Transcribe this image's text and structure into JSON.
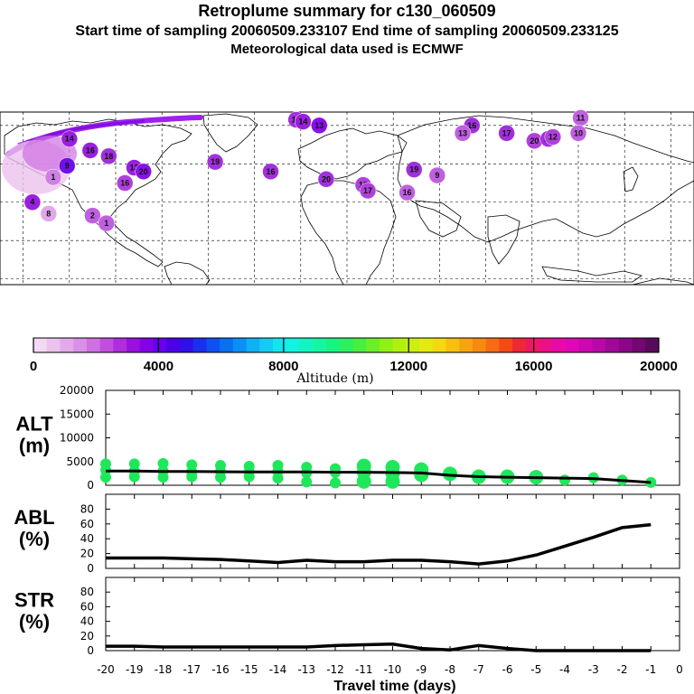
{
  "header": {
    "title": "Retroplume summary for c130_060509",
    "sampling": "Start time of sampling 20060509.233107     End time of sampling 20060509.233125",
    "met": "Meteorological data used is ECMWF"
  },
  "colorbar": {
    "ticks": [
      "0",
      "4000",
      "8000",
      "12000",
      "16000",
      "20000"
    ],
    "label": "Altitude (m)",
    "colors": [
      "#f4d9f4",
      "#ecc2ee",
      "#e3aaea",
      "#da90e6",
      "#cf70e2",
      "#c24ee0",
      "#b02cdc",
      "#9a10de",
      "#8400e6",
      "#6800ec",
      "#4c00e8",
      "#3010e8",
      "#1a30ee",
      "#1050f0",
      "#0a70f2",
      "#0a90f4",
      "#10b0f4",
      "#14ccf2",
      "#14e4ee",
      "#14f2e0",
      "#14f4c0",
      "#14f6a0",
      "#18f480",
      "#2cf060",
      "#48ee40",
      "#6cee28",
      "#90f018",
      "#b0f010",
      "#ccee10",
      "#e4ea10",
      "#f4d810",
      "#f8be10",
      "#f8a410",
      "#f88a10",
      "#f66c14",
      "#f44a18",
      "#ee2834",
      "#ee1860",
      "#ec1088",
      "#e80aa8",
      "#de08b8",
      "#cc08b0",
      "#b808a8",
      "#a00898",
      "#8a0888",
      "#720870",
      "#5a0a5c"
    ]
  },
  "map_markers": [
    {
      "label": "18",
      "lon": -22,
      "lat": 83,
      "c": "#a030dc"
    },
    {
      "label": "14",
      "lon": -19,
      "lat": 82,
      "c": "#9a20e0"
    },
    {
      "label": "13",
      "lon": -12,
      "lat": 80,
      "c": "#8a10e8"
    },
    {
      "label": "16",
      "lon": 54,
      "lat": 80,
      "c": "#a030dc"
    },
    {
      "label": "13",
      "lon": 50,
      "lat": 76,
      "c": "#c060e0"
    },
    {
      "label": "17",
      "lon": 69,
      "lat": 76,
      "c": "#a030dc"
    },
    {
      "label": "20",
      "lon": 81,
      "lat": 72,
      "c": "#b040dc"
    },
    {
      "label": "19",
      "lon": 87,
      "lat": 73,
      "c": "#a030dc"
    },
    {
      "label": "12",
      "lon": 89,
      "lat": 74,
      "c": "#b040dc"
    },
    {
      "label": "11",
      "lon": 101,
      "lat": 84,
      "c": "#c060e0"
    },
    {
      "label": "10",
      "lon": 100,
      "lat": 76,
      "c": "#c060e0"
    },
    {
      "label": "16",
      "lon": -111,
      "lat": 67,
      "c": "#9a20e0"
    },
    {
      "label": "18",
      "lon": -103,
      "lat": 64,
      "c": "#a030dc"
    },
    {
      "label": "13",
      "lon": -92,
      "lat": 58,
      "c": "#9a20e0"
    },
    {
      "label": "16",
      "lon": -96,
      "lat": 50,
      "c": "#b040dc"
    },
    {
      "label": "20",
      "lon": -88,
      "lat": 56,
      "c": "#8a10e8"
    },
    {
      "label": "19",
      "lon": -57,
      "lat": 61,
      "c": "#a030dc"
    },
    {
      "label": "16",
      "lon": -33,
      "lat": 56,
      "c": "#a030dc"
    },
    {
      "label": "20",
      "lon": -9,
      "lat": 52,
      "c": "#a030dc"
    },
    {
      "label": "18",
      "lon": 7,
      "lat": 49,
      "c": "#b040dc"
    },
    {
      "label": "17",
      "lon": 9,
      "lat": 46,
      "c": "#b040dc"
    },
    {
      "label": "19",
      "lon": 29,
      "lat": 57,
      "c": "#a030dc"
    },
    {
      "label": "16",
      "lon": 26,
      "lat": 45,
      "c": "#c060e0"
    },
    {
      "label": "9",
      "lon": 39,
      "lat": 54,
      "c": "#c060e0"
    },
    {
      "label": "4",
      "lon": -136,
      "lat": 40,
      "c": "#9a20e0"
    },
    {
      "label": "8",
      "lon": -129,
      "lat": 34,
      "c": "#e0a8ec"
    },
    {
      "label": "2",
      "lon": -110,
      "lat": 33,
      "c": "#c060e0"
    },
    {
      "label": "1",
      "lon": -104,
      "lat": 29,
      "c": "#c060e0"
    },
    {
      "label": "14",
      "lon": -120,
      "lat": 73,
      "c": "#9a20e0"
    },
    {
      "label": "9",
      "lon": -121,
      "lat": 59,
      "c": "#7010e8"
    },
    {
      "label": "1",
      "lon": -127,
      "lat": 53,
      "c": "#d080e4"
    }
  ],
  "chart_data": [
    {
      "type": "scatter",
      "panel": "ALT",
      "ylabel": "ALT\n(m)",
      "ylim": [
        0,
        20000
      ],
      "yticks": [
        "20000",
        "15000",
        "10000",
        "5000",
        "0"
      ],
      "x": [
        -20,
        -19,
        -18,
        -17,
        -16,
        -15,
        -14,
        -13,
        -12,
        -11,
        -10,
        -9,
        -8,
        -7,
        -6,
        -5,
        -4,
        -3,
        -2,
        -1
      ],
      "mean_altitude": [
        3000,
        3000,
        2900,
        2900,
        2850,
        2800,
        2800,
        2800,
        2750,
        2750,
        2700,
        2600,
        2100,
        1800,
        1700,
        1600,
        1500,
        1400,
        1000,
        600
      ],
      "points": [
        [
          -20,
          4500
        ],
        [
          -20,
          3200
        ],
        [
          -20,
          1700
        ],
        [
          -19,
          4500
        ],
        [
          -19,
          3000
        ],
        [
          -19,
          1800
        ],
        [
          -18,
          4600
        ],
        [
          -18,
          3000
        ],
        [
          -18,
          1700
        ],
        [
          -17,
          4300
        ],
        [
          -17,
          2800
        ],
        [
          -17,
          1800
        ],
        [
          -16,
          4200
        ],
        [
          -16,
          2900
        ],
        [
          -16,
          1700
        ],
        [
          -15,
          4000
        ],
        [
          -15,
          2800
        ],
        [
          -15,
          1800
        ],
        [
          -14,
          4200
        ],
        [
          -14,
          2900
        ],
        [
          -14,
          1500
        ],
        [
          -13,
          3800
        ],
        [
          -13,
          2600
        ],
        [
          -13,
          700
        ],
        [
          -12,
          3500
        ],
        [
          -12,
          2700
        ],
        [
          -12,
          500
        ],
        [
          -11,
          4100
        ],
        [
          -11,
          2800
        ],
        [
          -11,
          800
        ],
        [
          -10,
          3800
        ],
        [
          -10,
          2500
        ],
        [
          -10,
          800
        ],
        [
          -9,
          3300
        ],
        [
          -9,
          2200
        ],
        [
          -8,
          2400
        ],
        [
          -7,
          1800
        ],
        [
          -6,
          1800
        ],
        [
          -5,
          1700
        ],
        [
          -4,
          1100
        ],
        [
          -3,
          1600
        ],
        [
          -2,
          1100
        ],
        [
          -1,
          600
        ]
      ],
      "color": "#1ee85a"
    },
    {
      "type": "line",
      "panel": "ABL",
      "ylabel": "ABL\n(%)",
      "ylim": [
        0,
        100
      ],
      "yticks": [
        "80",
        "60",
        "40",
        "20",
        "0"
      ],
      "x": [
        -20,
        -19,
        -18,
        -17,
        -16,
        -15,
        -14,
        -13,
        -12,
        -11,
        -10,
        -9,
        -8,
        -7,
        -6,
        -5,
        -4,
        -3,
        -2,
        -1
      ],
      "values": [
        14,
        14,
        14,
        13,
        12,
        10,
        8,
        11,
        9,
        9,
        11,
        11,
        9,
        6,
        10,
        18,
        30,
        42,
        55,
        59
      ]
    },
    {
      "type": "line",
      "panel": "STR",
      "ylabel": "STR\n(%)",
      "ylim": [
        0,
        100
      ],
      "yticks": [
        "80",
        "60",
        "40",
        "20",
        "0"
      ],
      "x": [
        -20,
        -19,
        -18,
        -17,
        -16,
        -15,
        -14,
        -13,
        -12,
        -11,
        -10,
        -9,
        -8,
        -7,
        -6,
        -5,
        -4,
        -3,
        -2,
        -1
      ],
      "values": [
        6,
        6,
        5,
        5,
        5,
        5,
        5,
        5,
        7,
        8,
        9,
        3,
        1,
        7,
        3,
        0,
        0,
        0,
        0,
        0
      ]
    }
  ],
  "xaxis": {
    "ticks": [
      "-20",
      "-19",
      "-18",
      "-17",
      "-16",
      "-15",
      "-14",
      "-13",
      "-12",
      "-11",
      "-10",
      "-9",
      "-8",
      "-7",
      "-6",
      "-5",
      "-4",
      "-3",
      "-2",
      "-1",
      "0"
    ],
    "label": "Travel time (days)"
  }
}
